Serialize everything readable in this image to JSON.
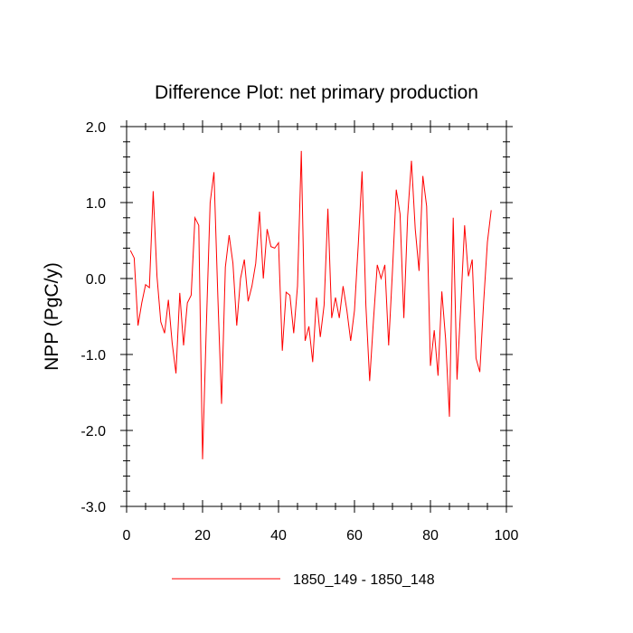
{
  "chart_data": {
    "type": "line",
    "title": "Difference Plot: net primary production",
    "xlabel": "",
    "ylabel": "NPP  (PgC/y)",
    "xlim": [
      0,
      100
    ],
    "ylim": [
      -3.0,
      2.0
    ],
    "x_ticks": [
      0,
      20,
      40,
      60,
      80,
      100
    ],
    "x_tick_labels": [
      "0",
      "20",
      "40",
      "60",
      "80",
      "100"
    ],
    "y_ticks": [
      -3.0,
      -2.0,
      -1.0,
      0.0,
      1.0,
      2.0
    ],
    "y_tick_labels": [
      "-3.0",
      "-2.0",
      "-1.0",
      "0.0",
      "1.0",
      "2.0"
    ],
    "legend_position": "bottom",
    "series": [
      {
        "name": "1850_149 - 1850_148",
        "color": "#ff0000",
        "x": [
          1,
          2,
          3,
          4,
          5,
          6,
          7,
          8,
          9,
          10,
          11,
          12,
          13,
          14,
          15,
          16,
          17,
          18,
          19,
          20,
          21,
          22,
          23,
          24,
          25,
          26,
          27,
          28,
          29,
          30,
          31,
          32,
          33,
          34,
          35,
          36,
          37,
          38,
          39,
          40,
          41,
          42,
          43,
          44,
          45,
          46,
          47,
          48,
          49,
          50,
          51,
          52,
          53,
          54,
          55,
          56,
          57,
          58,
          59,
          60,
          61,
          62,
          63,
          64,
          65,
          66,
          67,
          68,
          69,
          70,
          71,
          72,
          73,
          74,
          75,
          76,
          77,
          78,
          79,
          80,
          81,
          82,
          83,
          84,
          85,
          86,
          87,
          88,
          89,
          90,
          91,
          92,
          93,
          94,
          95,
          96
        ],
        "values": [
          0.37,
          0.27,
          -0.62,
          -0.32,
          -0.08,
          -0.12,
          1.15,
          0.03,
          -0.57,
          -0.72,
          -0.28,
          -0.85,
          -1.25,
          -0.19,
          -0.88,
          -0.32,
          -0.22,
          0.8,
          0.7,
          -2.38,
          -0.62,
          1.0,
          1.4,
          -0.2,
          -1.65,
          0.15,
          0.57,
          0.2,
          -0.62,
          0.0,
          0.25,
          -0.3,
          -0.1,
          0.2,
          0.88,
          0.0,
          0.65,
          0.42,
          0.4,
          0.47,
          -0.95,
          -0.18,
          -0.22,
          -0.72,
          -0.1,
          1.68,
          -0.82,
          -0.63,
          -1.1,
          -0.25,
          -0.77,
          -0.35,
          0.92,
          -0.52,
          -0.25,
          -0.52,
          -0.1,
          -0.42,
          -0.82,
          -0.42,
          0.45,
          1.41,
          -0.35,
          -1.35,
          -0.55,
          0.18,
          0.0,
          0.18,
          -0.88,
          0.1,
          1.17,
          0.85,
          -0.52,
          0.82,
          1.55,
          0.65,
          0.1,
          1.35,
          0.95,
          -1.15,
          -0.68,
          -1.28,
          -0.17,
          -0.8,
          -1.82,
          0.8,
          -1.33,
          -0.35,
          0.7,
          0.03,
          0.25,
          -1.05,
          -1.23,
          -0.32,
          0.48,
          0.9
        ]
      }
    ]
  }
}
